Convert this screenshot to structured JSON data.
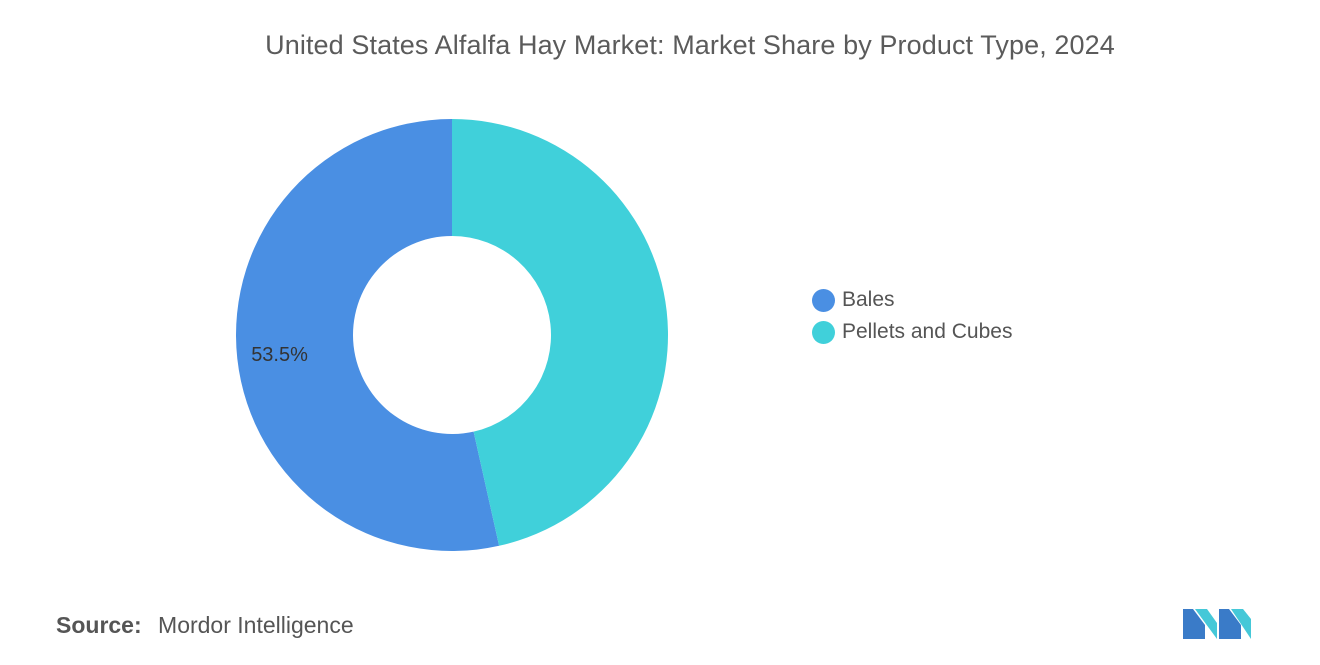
{
  "chart_data": {
    "type": "pie",
    "style": "donut",
    "title": "United States Alfalfa Hay Market: Market Share by Product Type, 2024",
    "categories": [
      "Bales",
      "Pellets and Cubes"
    ],
    "values": [
      53.5,
      46.5
    ],
    "colors": [
      "#4a8fe3",
      "#40d0da"
    ],
    "data_labels": [
      "53.5%",
      ""
    ],
    "legend_position": "right"
  },
  "source": {
    "label": "Source:",
    "value": "Mordor Intelligence"
  },
  "logo": {
    "icon": "mordor-intelligence-logo-icon"
  }
}
